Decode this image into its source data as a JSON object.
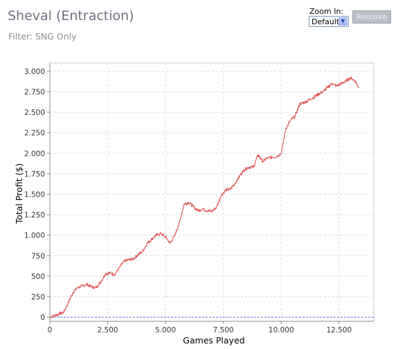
{
  "header": {
    "title": "Sheval (Entraction)",
    "filter_text": "Filter: SNG Only"
  },
  "zoom": {
    "label": "Zoom In:",
    "selected": "Default",
    "remove_label": "Remove"
  },
  "chart_data": {
    "type": "line",
    "title": "",
    "xlabel": "Games Played",
    "ylabel": "Total Profit ($)",
    "xlim": [
      0,
      14000
    ],
    "ylim": [
      -50,
      3100
    ],
    "x_ticks": [
      0,
      2500,
      5000,
      7500,
      10000,
      12500
    ],
    "x_tick_labels": [
      "0",
      "2.500",
      "5.000",
      "7.500",
      "10.000",
      "12.500"
    ],
    "y_ticks": [
      0,
      250,
      500,
      750,
      1000,
      1250,
      1500,
      1750,
      2000,
      2250,
      2500,
      2750,
      3000
    ],
    "y_tick_labels": [
      "0",
      "250",
      "500",
      "750",
      "1.000",
      "1.250",
      "1.500",
      "1.750",
      "2.000",
      "2.250",
      "2.500",
      "2.750",
      "3.000"
    ],
    "grid": true,
    "line_color": "#e05555",
    "zero_line_color": "#6b6bd6",
    "series": [
      {
        "x": [
          0,
          200,
          400,
          600,
          800,
          1000,
          1200,
          1400,
          1600,
          1800,
          2000,
          2200,
          2400,
          2600,
          2800,
          3000,
          3200,
          3400,
          3600,
          3800,
          4000,
          4200,
          4400,
          4600,
          4800,
          5000,
          5200,
          5400,
          5600,
          5800,
          6000,
          6200,
          6400,
          6600,
          6800,
          7000,
          7200,
          7400,
          7600,
          7800,
          8000,
          8200,
          8400,
          8600,
          8800,
          9000,
          9200,
          9400,
          9600,
          9800,
          10000,
          10200,
          10400,
          10600,
          10800,
          11000,
          11200,
          11400,
          11600,
          11800,
          12000,
          12200,
          12400,
          12600,
          12800,
          13000,
          13200,
          13350
        ],
        "y": [
          0,
          20,
          40,
          60,
          180,
          300,
          360,
          380,
          400,
          370,
          360,
          430,
          530,
          540,
          520,
          600,
          680,
          700,
          710,
          760,
          800,
          900,
          950,
          1000,
          1020,
          980,
          900,
          1000,
          1150,
          1380,
          1400,
          1350,
          1300,
          1320,
          1300,
          1290,
          1340,
          1480,
          1550,
          1560,
          1630,
          1720,
          1800,
          1830,
          1830,
          1980,
          1900,
          1940,
          1950,
          1960,
          2000,
          2300,
          2400,
          2450,
          2600,
          2620,
          2650,
          2680,
          2720,
          2750,
          2800,
          2850,
          2820,
          2850,
          2880,
          2920,
          2880,
          2800
        ]
      }
    ]
  }
}
